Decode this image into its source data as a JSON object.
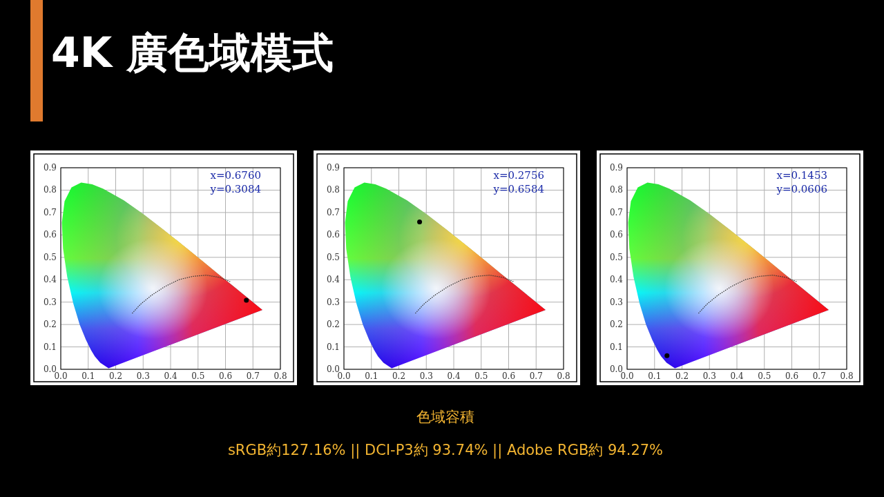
{
  "chart_data": [
    {
      "type": "scatter",
      "title": "4K 廣色域模式",
      "x": [
        0.676
      ],
      "values": [
        0.3084
      ],
      "color": "#000000",
      "marker": "circle",
      "grid": true,
      "xlim": [
        0,
        0.8
      ],
      "ylim": [
        0,
        0.9
      ],
      "xticks": [
        {
          "value": 0,
          "label": "0.0"
        },
        {
          "value": 0.1,
          "label": "0.1"
        },
        {
          "value": 0.2,
          "label": "0.2"
        },
        {
          "value": 0.3,
          "label": "0.3"
        },
        {
          "value": 0.4,
          "label": "0.4"
        },
        {
          "value": 0.5,
          "label": "0.5"
        },
        {
          "value": 0.6,
          "label": "0.6"
        },
        {
          "value": 0.7,
          "label": "0.7"
        },
        {
          "value": 0.8,
          "label": "0.8"
        }
      ],
      "yticks": [
        {
          "value": 0,
          "label": "0.0"
        },
        {
          "value": 0.1,
          "label": "0.1"
        },
        {
          "value": 0.2,
          "label": "0.2"
        },
        {
          "value": 0.3,
          "label": "0.3"
        },
        {
          "value": 0.4,
          "label": "0.4"
        },
        {
          "value": 0.5,
          "label": "0.5"
        },
        {
          "value": 0.6,
          "label": "0.6"
        },
        {
          "value": 0.7,
          "label": "0.7"
        },
        {
          "value": 0.8,
          "label": "0.8"
        },
        {
          "value": 0.9,
          "label": "0.9"
        }
      ],
      "series": [
        {
          "type": "line",
          "x": [
            0.26,
            0.29,
            0.33,
            0.38,
            0.43,
            0.48,
            0.53,
            0.58,
            0.62
          ],
          "values": [
            0.25,
            0.29,
            0.33,
            0.37,
            0.4,
            0.415,
            0.42,
            0.41,
            0.39
          ],
          "color": "#333333",
          "line_style": "dotted",
          "marker": "none"
        }
      ],
      "annotations": [
        "x=0.6760",
        "y=0.3084"
      ]
    },
    {
      "type": "scatter",
      "x": [
        0.2756
      ],
      "values": [
        0.6584
      ],
      "color": "#000000",
      "marker": "circle",
      "grid": true,
      "xlim": [
        0,
        0.8
      ],
      "ylim": [
        0,
        0.9
      ],
      "xticks": [
        {
          "value": 0,
          "label": "0.0"
        },
        {
          "value": 0.1,
          "label": "0.1"
        },
        {
          "value": 0.2,
          "label": "0.2"
        },
        {
          "value": 0.3,
          "label": "0.3"
        },
        {
          "value": 0.4,
          "label": "0.4"
        },
        {
          "value": 0.5,
          "label": "0.5"
        },
        {
          "value": 0.6,
          "label": "0.6"
        },
        {
          "value": 0.7,
          "label": "0.7"
        },
        {
          "value": 0.8,
          "label": "0.8"
        }
      ],
      "yticks": [
        {
          "value": 0,
          "label": "0.0"
        },
        {
          "value": 0.1,
          "label": "0.1"
        },
        {
          "value": 0.2,
          "label": "0.2"
        },
        {
          "value": 0.3,
          "label": "0.3"
        },
        {
          "value": 0.4,
          "label": "0.4"
        },
        {
          "value": 0.5,
          "label": "0.5"
        },
        {
          "value": 0.6,
          "label": "0.6"
        },
        {
          "value": 0.7,
          "label": "0.7"
        },
        {
          "value": 0.8,
          "label": "0.8"
        },
        {
          "value": 0.9,
          "label": "0.9"
        }
      ],
      "series": [
        {
          "type": "line",
          "x": [
            0.26,
            0.29,
            0.33,
            0.38,
            0.43,
            0.48,
            0.53,
            0.58,
            0.62
          ],
          "values": [
            0.25,
            0.29,
            0.33,
            0.37,
            0.4,
            0.415,
            0.42,
            0.41,
            0.39
          ],
          "color": "#333333",
          "line_style": "dotted",
          "marker": "none"
        }
      ],
      "annotations": [
        "x=0.2756",
        "y=0.6584",
        "色域容積",
        "sRGB約127.16%   ||   DCI-P3約 93.74%   ||   Adobe RGB約 94.27%"
      ]
    },
    {
      "type": "scatter",
      "x": [
        0.1453
      ],
      "values": [
        0.0606
      ],
      "color": "#000000",
      "marker": "circle",
      "grid": true,
      "xlim": [
        0,
        0.8
      ],
      "ylim": [
        0,
        0.9
      ],
      "xticks": [
        {
          "value": 0,
          "label": "0.0"
        },
        {
          "value": 0.1,
          "label": "0.1"
        },
        {
          "value": 0.2,
          "label": "0.2"
        },
        {
          "value": 0.3,
          "label": "0.3"
        },
        {
          "value": 0.4,
          "label": "0.4"
        },
        {
          "value": 0.5,
          "label": "0.5"
        },
        {
          "value": 0.6,
          "label": "0.6"
        },
        {
          "value": 0.7,
          "label": "0.7"
        },
        {
          "value": 0.8,
          "label": "0.8"
        }
      ],
      "yticks": [
        {
          "value": 0,
          "label": "0.0"
        },
        {
          "value": 0.1,
          "label": "0.1"
        },
        {
          "value": 0.2,
          "label": "0.2"
        },
        {
          "value": 0.3,
          "label": "0.3"
        },
        {
          "value": 0.4,
          "label": "0.4"
        },
        {
          "value": 0.5,
          "label": "0.5"
        },
        {
          "value": 0.6,
          "label": "0.6"
        },
        {
          "value": 0.7,
          "label": "0.7"
        },
        {
          "value": 0.8,
          "label": "0.8"
        },
        {
          "value": 0.9,
          "label": "0.9"
        }
      ],
      "series": [
        {
          "type": "line",
          "x": [
            0.26,
            0.29,
            0.33,
            0.38,
            0.43,
            0.48,
            0.53,
            0.58,
            0.62
          ],
          "values": [
            0.25,
            0.29,
            0.33,
            0.37,
            0.4,
            0.415,
            0.42,
            0.41,
            0.39
          ],
          "color": "#333333",
          "line_style": "dotted",
          "marker": "none"
        }
      ],
      "annotations": [
        "x=0.1453",
        "y=0.0606"
      ]
    }
  ]
}
